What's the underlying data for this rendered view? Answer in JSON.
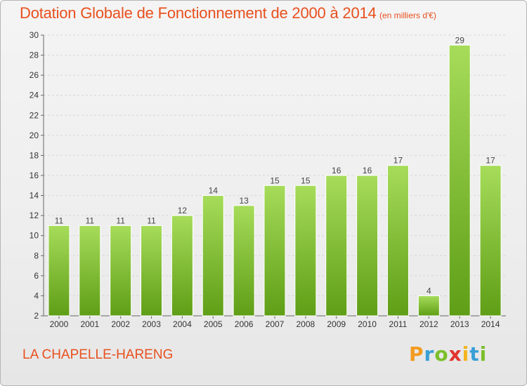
{
  "header": {
    "title": "Dotation Globale de Fonctionnement de 2000 à 2014",
    "subtitle": "(en milliers d'€)"
  },
  "footer": {
    "place": "LA CHAPELLE-HARENG",
    "logo_text": "Proxiti"
  },
  "colors": {
    "title": "#e8501e",
    "bar_light": "#a6dc5a",
    "bar_dark": "#5f9e16",
    "grid": "#d6d6d6"
  },
  "chart_data": {
    "type": "bar",
    "title": "Dotation Globale de Fonctionnement de 2000 à 2014",
    "subtitle": "(en milliers d'€)",
    "categories": [
      "2000",
      "2001",
      "2002",
      "2003",
      "2004",
      "2005",
      "2006",
      "2007",
      "2008",
      "2009",
      "2010",
      "2011",
      "2012",
      "2013",
      "2014"
    ],
    "values": [
      11,
      11,
      11,
      11,
      12,
      14,
      13,
      15,
      15,
      16,
      16,
      17,
      4,
      29,
      17
    ],
    "ylim": [
      2,
      30
    ],
    "yticks": [
      2,
      4,
      6,
      8,
      10,
      12,
      14,
      16,
      18,
      20,
      22,
      24,
      26,
      28,
      30
    ],
    "xlabel": "",
    "ylabel": "",
    "grid": true,
    "legend": "none"
  }
}
